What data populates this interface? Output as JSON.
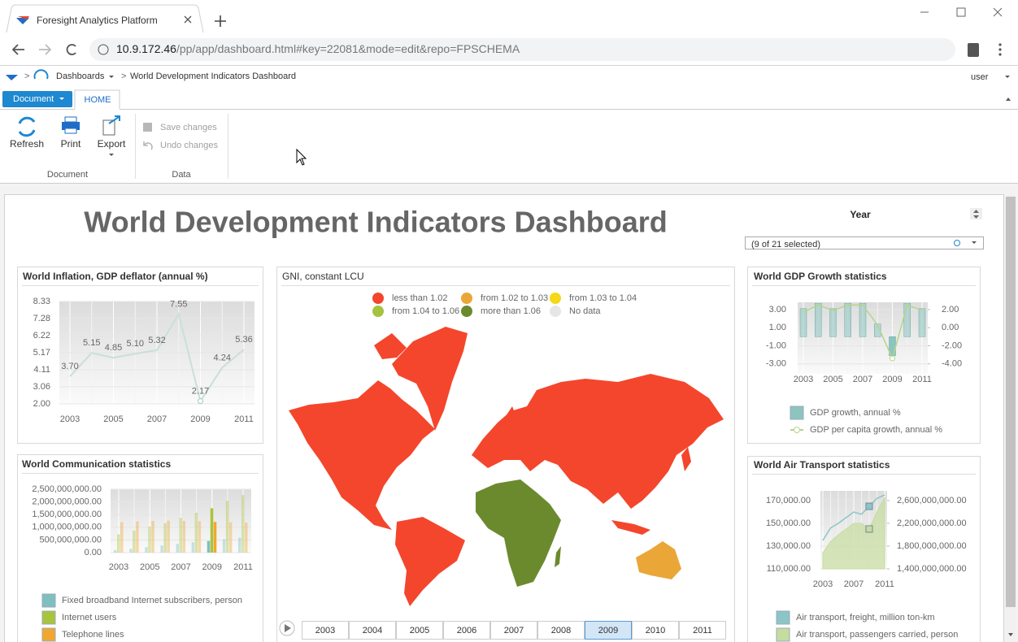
{
  "browser": {
    "tab_title": "Foresight Analytics Platform",
    "url_host": "10.9.172.46",
    "url_path": "/pp/app/dashboard.html#key=22081&mode=edit&repo=FPSCHEMA"
  },
  "breadcrumb": {
    "section": "Dashboards",
    "current": "World Development Indicators Dashboard",
    "user": "user"
  },
  "ribbon": {
    "document_menu": "Document",
    "tab": "HOME",
    "buttons": {
      "refresh": "Refresh",
      "print": "Print",
      "export": "Export",
      "save": "Save changes",
      "undo": "Undo changes"
    },
    "groups": [
      "Document",
      "Data"
    ]
  },
  "dashboard": {
    "title": "World Development Indicators Dashboard",
    "filter": {
      "label": "Year",
      "selection": "(9 of 21 selected)"
    }
  },
  "inflation_chart": {
    "type": "line",
    "title": "World Inflation, GDP deflator (annual %)",
    "x": [
      2003,
      2004,
      2005,
      2006,
      2007,
      2008,
      2009,
      2010,
      2011
    ],
    "xlim": [
      2003,
      2011
    ],
    "xticks": [
      2003,
      2005,
      2007,
      2009,
      2011
    ],
    "ylim": [
      2,
      8.33
    ],
    "yticks": [
      {
        "value": 2,
        "label": "2.00"
      },
      3.06,
      4.11,
      5.17,
      6.22,
      7.28,
      8.33
    ],
    "values": [
      3.7,
      5.15,
      4.85,
      5.1,
      5.32,
      7.55,
      2.17,
      4.24,
      5.36
    ],
    "value_labels": [
      "3.70",
      "5.15",
      "4.85",
      "5.10",
      "5.32",
      "7.55",
      "2.17",
      "4.24",
      "5.36"
    ],
    "color": "#c9dfd8"
  },
  "communication_chart": {
    "type": "bar",
    "title": "World Communication statistics",
    "x": [
      2003,
      2004,
      2005,
      2006,
      2007,
      2008,
      2009,
      2010,
      2011
    ],
    "xlim": [
      2003,
      2011
    ],
    "xticks": [
      2003,
      2005,
      2007,
      2009,
      2011
    ],
    "ylim": [
      0,
      2500000000
    ],
    "yticks": [
      {
        "value": 0,
        "label": "0.00"
      },
      {
        "value": 500000000,
        "label": "500,000,000.00"
      },
      {
        "value": 1000000000,
        "label": "1,000,000,000.00"
      },
      {
        "value": 1500000000,
        "label": "1,500,000,000.00"
      },
      {
        "value": 2000000000,
        "label": "2,000,000,000.00"
      },
      {
        "value": 2500000000,
        "label": "2,500,000,000.00"
      }
    ],
    "series": [
      {
        "name": "Fixed broadband Internet subscribers, person",
        "color": "#7fbfbd",
        "values": [
          100000000,
          150000000,
          215000000,
          280000000,
          345000000,
          410000000,
          460000000,
          530000000,
          590000000
        ]
      },
      {
        "name": "Internet users",
        "color": "#a9c43b",
        "values": [
          720000000,
          870000000,
          1020000000,
          1160000000,
          1370000000,
          1570000000,
          1750000000,
          2040000000,
          2270000000
        ]
      },
      {
        "name": "Telephone lines",
        "color": "#f0a830",
        "values": [
          1200000000,
          1230000000,
          1250000000,
          1260000000,
          1250000000,
          1240000000,
          1210000000,
          1200000000,
          1180000000
        ]
      }
    ]
  },
  "gni_map": {
    "type": "map",
    "title": "GNI, constant LCU",
    "legend": [
      {
        "label": "less than 1.02",
        "color": "#f4462c"
      },
      {
        "label": "from 1.02 to 1.03",
        "color": "#eaa637"
      },
      {
        "label": "from 1.03 to 1.04",
        "color": "#f5d816"
      },
      {
        "label": "from 1.04 to 1.06",
        "color": "#a7c23e"
      },
      {
        "label": "more than 1.06",
        "color": "#6b8a2e"
      },
      {
        "label": "No data",
        "color": "#e6e6e6"
      }
    ],
    "timeline": [
      "2003",
      "2004",
      "2005",
      "2006",
      "2007",
      "2008",
      "2009",
      "2010",
      "2011"
    ],
    "selected": "2009"
  },
  "gdp_chart": {
    "type": "bar_line",
    "title": "World GDP Growth statistics",
    "x": [
      2003,
      2004,
      2005,
      2006,
      2007,
      2008,
      2009,
      2010,
      2011
    ],
    "xlim": [
      2003,
      2011
    ],
    "xticks": [
      2003,
      2005,
      2007,
      2009,
      2011
    ],
    "ylim": [
      -4.1,
      3.8
    ],
    "yticks": [
      {
        "value": 3,
        "label": "3.00"
      },
      {
        "value": 1,
        "label": "1.00"
      },
      {
        "value": -1,
        "label": "-1.00"
      },
      {
        "value": -3,
        "label": "-3.00"
      }
    ],
    "y2lim": [
      -5.1,
      2.8
    ],
    "y2ticks": [
      {
        "value": 2,
        "label": "2.00"
      },
      {
        "value": 0,
        "label": "0.00"
      },
      {
        "value": -2,
        "label": "-2.00"
      },
      {
        "value": -4,
        "label": "-4.00"
      }
    ],
    "series": [
      {
        "name": "GDP growth, annual %",
        "type": "bar",
        "color": "#8cc5bf",
        "values": [
          3.1,
          3.7,
          3.1,
          3.7,
          3.7,
          1.4,
          -2.1,
          3.7,
          3.1
        ]
      },
      {
        "name": "GDP per capita growth, annual %",
        "type": "line",
        "axis": "y2",
        "color": "#b5d58a",
        "values": [
          1.7,
          2.5,
          1.9,
          2.5,
          2.5,
          0.3,
          -3.4,
          2.5,
          1.9
        ]
      }
    ]
  },
  "air_chart": {
    "type": "area_line",
    "title": "World Air Transport statistics",
    "x": [
      2003,
      2004,
      2005,
      2006,
      2007,
      2008,
      2009,
      2010,
      2011
    ],
    "xlim": [
      2003,
      2011
    ],
    "xticks": [
      2003,
      2007,
      2011
    ],
    "ylim": [
      110000,
      178600
    ],
    "yticks": [
      {
        "value": 110000,
        "label": "110,000.00"
      },
      {
        "value": 130000,
        "label": "130,000.00"
      },
      {
        "value": 150000,
        "label": "150,000.00"
      },
      {
        "value": 170000,
        "label": "170,000.00"
      }
    ],
    "y2lim": [
      1400000000,
      2770000000
    ],
    "y2ticks": [
      {
        "value": 1400000000,
        "label": "1,400,000,000.00"
      },
      {
        "value": 1800000000,
        "label": "1,800,000,000.00"
      },
      {
        "value": 2200000000,
        "label": "2,200,000,000.00"
      },
      {
        "value": 2600000000,
        "label": "2,600,000,000.00"
      }
    ],
    "series": [
      {
        "name": "Air transport, freight, million ton-km",
        "type": "line",
        "color": "#8cc5c6",
        "values": [
          135000,
          146000,
          150000,
          155000,
          160000,
          158000,
          165000,
          172000,
          175000
        ]
      },
      {
        "name": "Air transport, passengers carried, person",
        "type": "area",
        "axis": "y2",
        "color": "#c6dc9e",
        "values": [
          1680000000,
          1880000000,
          2000000000,
          2100000000,
          2200000000,
          2200000000,
          2100000000,
          2400000000,
          2650000000
        ]
      }
    ]
  }
}
